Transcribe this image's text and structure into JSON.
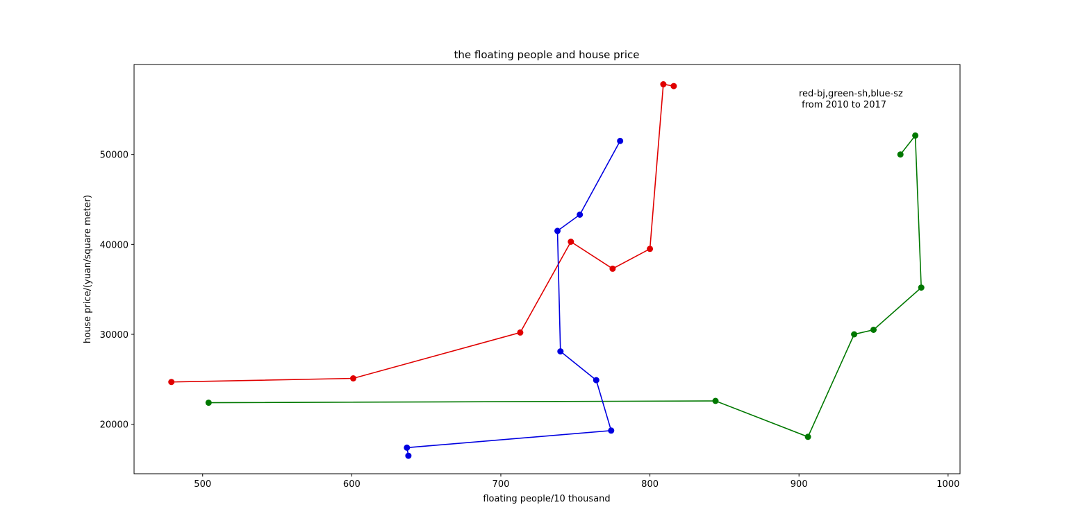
{
  "chart_data": {
    "type": "line",
    "title": "the floating people and house price",
    "xlabel": "floating people/10 thousand",
    "ylabel": "house price/(yuan/square meter)",
    "xlim": [
      454,
      1008
    ],
    "ylim": [
      14500,
      60000
    ],
    "xticks": [
      500,
      600,
      700,
      800,
      900,
      1000
    ],
    "yticks": [
      20000,
      30000,
      40000,
      50000
    ],
    "grid": false,
    "legend": "none",
    "annotation": [
      "red-bj,green-sh,blue-sz",
      " from 2010 to 2017"
    ],
    "series": [
      {
        "color": "#e00000",
        "marker": "circle",
        "points": [
          [
            479,
            24700
          ],
          [
            601,
            25100
          ],
          [
            713,
            30200
          ],
          [
            747,
            40300
          ],
          [
            775,
            37300
          ],
          [
            800,
            39500
          ],
          [
            809,
            57800
          ],
          [
            816,
            57600
          ]
        ]
      },
      {
        "color": "#007800",
        "marker": "circle",
        "points": [
          [
            504,
            22400
          ],
          [
            844,
            22600
          ],
          [
            906,
            18600
          ],
          [
            937,
            30000
          ],
          [
            950,
            30500
          ],
          [
            982,
            35200
          ],
          [
            978,
            52100
          ],
          [
            968,
            50000
          ]
        ]
      },
      {
        "color": "#0000e0",
        "marker": "circle",
        "points": [
          [
            638,
            16500
          ],
          [
            637,
            17400
          ],
          [
            774,
            19300
          ],
          [
            764,
            24900
          ],
          [
            740,
            28100
          ],
          [
            738,
            41500
          ],
          [
            753,
            43300
          ],
          [
            780,
            51500
          ]
        ]
      }
    ]
  }
}
